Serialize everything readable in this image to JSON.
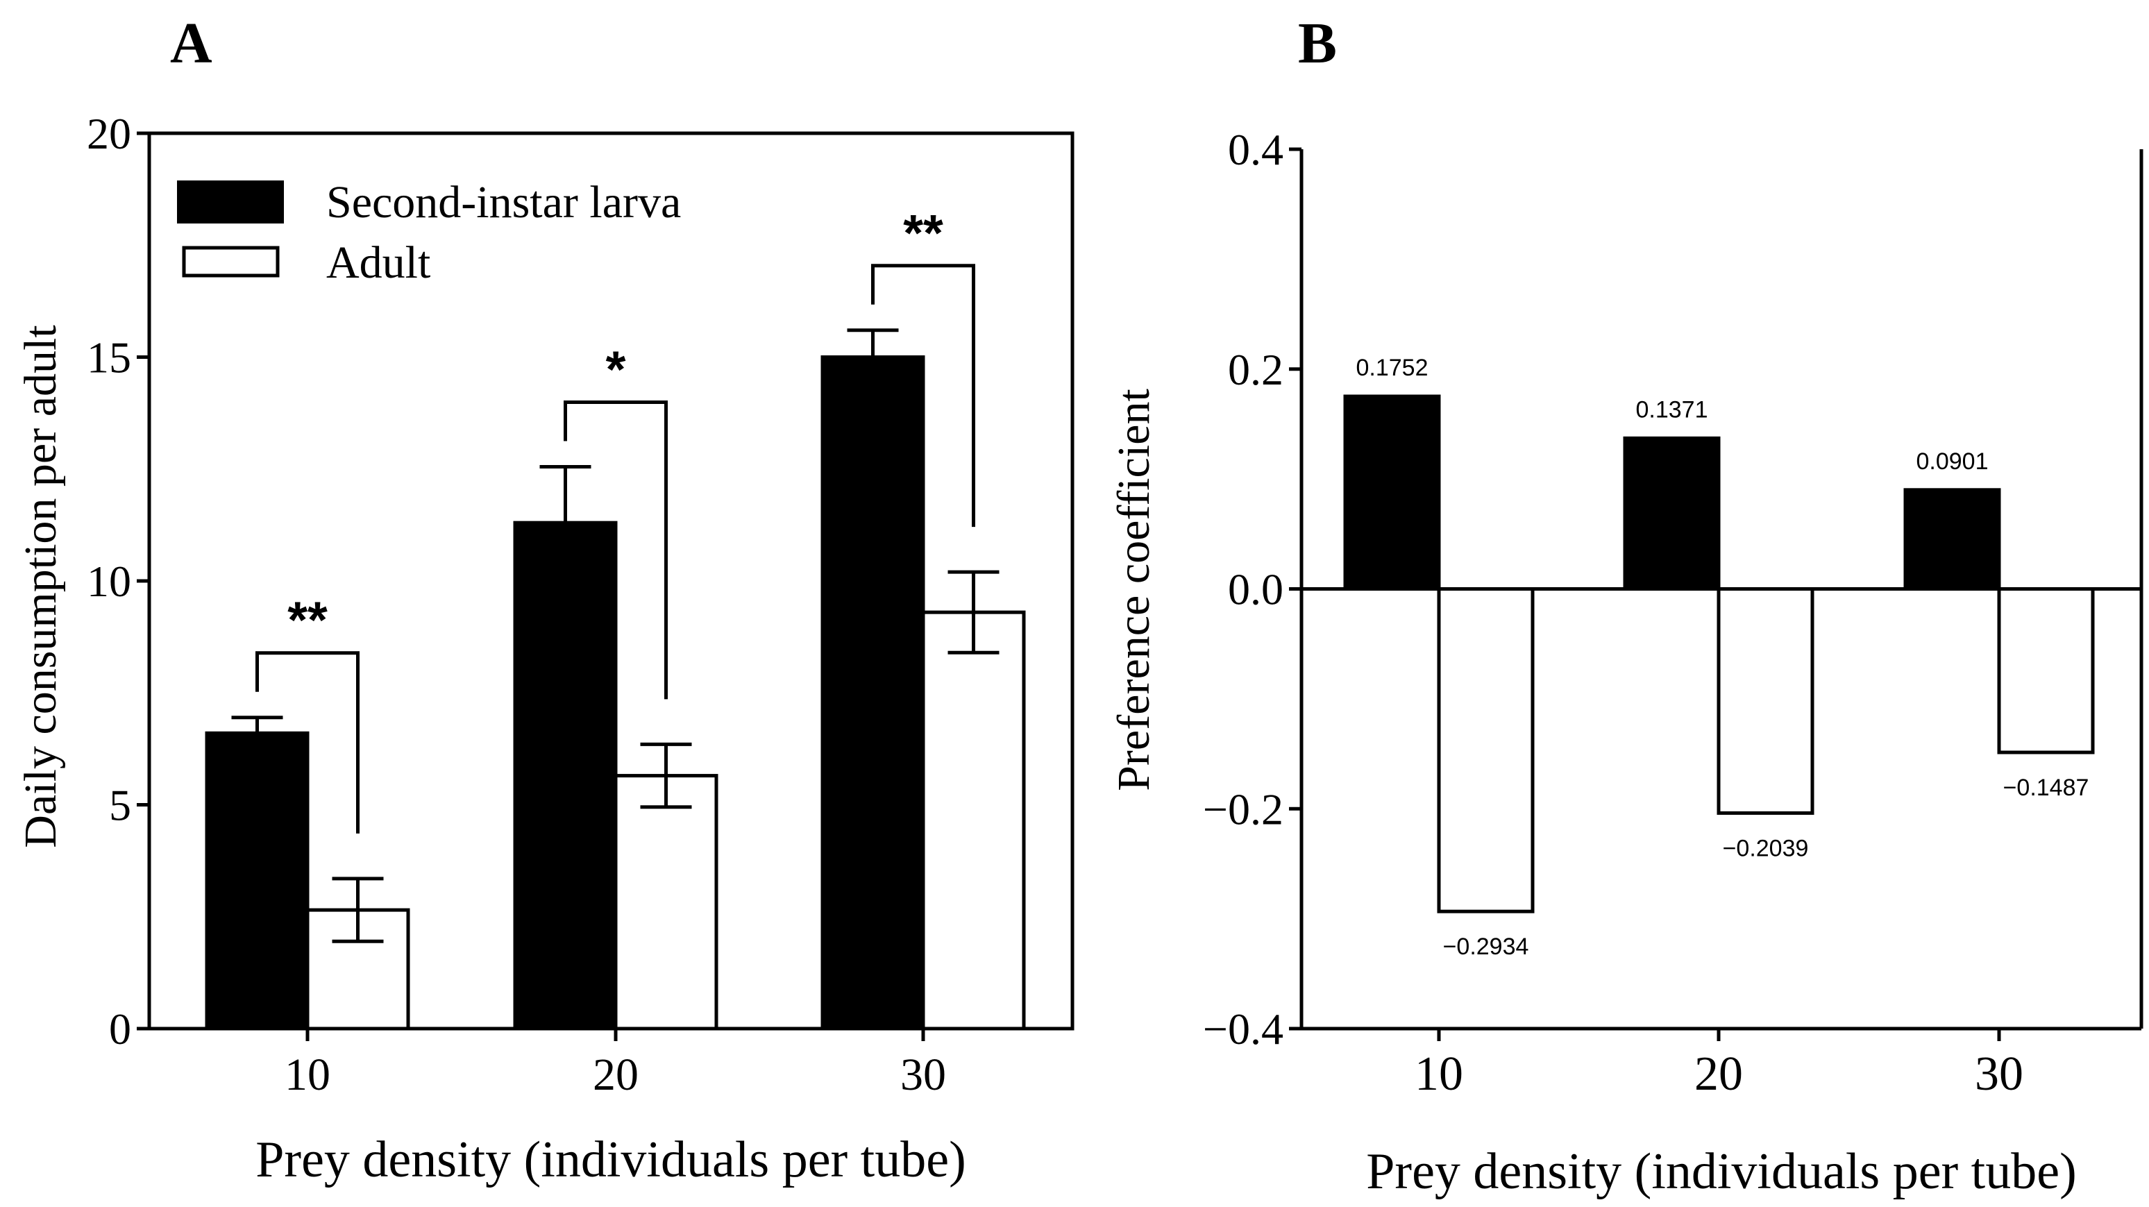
{
  "chart_data": [
    {
      "panel_label": "A",
      "type": "bar",
      "categories": [
        "10",
        "20",
        "30"
      ],
      "series": [
        {
          "name": "Second-instar larva",
          "values": [
            6.6,
            11.3,
            15.0
          ],
          "errors": [
            0.35,
            1.25,
            0.6
          ],
          "fill": "#000000"
        },
        {
          "name": "Adult",
          "values": [
            2.65,
            5.65,
            9.3
          ],
          "errors": [
            0.7,
            0.7,
            0.9
          ],
          "fill": "#ffffff"
        }
      ],
      "significance": [
        "**",
        "*",
        "**"
      ],
      "xlabel": "Prey density (individuals per tube)",
      "ylabel": "Daily consumption per adult",
      "ylim": [
        0,
        20
      ],
      "yticks": [
        "0",
        "5",
        "10",
        "15",
        "20"
      ],
      "legend_position": "top-left",
      "grid": false
    },
    {
      "panel_label": "B",
      "type": "bar",
      "categories": [
        "10",
        "20",
        "30"
      ],
      "series": [
        {
          "values": [
            0.1752,
            0.1371,
            0.0901
          ],
          "labels": [
            "0.1752",
            "0.1371",
            "0.0901"
          ],
          "fill": "#000000"
        },
        {
          "values": [
            -0.2934,
            -0.2039,
            -0.1487
          ],
          "labels": [
            "−0.2934",
            "−0.2039",
            "−0.1487"
          ],
          "fill": "#ffffff"
        }
      ],
      "xlabel": "Prey density (individuals per tube)",
      "ylabel": "Preference coefficient",
      "ylim": [
        -0.4,
        0.4
      ],
      "yticks": [
        "−0.4",
        "−0.2",
        "0.0",
        "0.2",
        "0.4"
      ],
      "grid": false
    }
  ]
}
